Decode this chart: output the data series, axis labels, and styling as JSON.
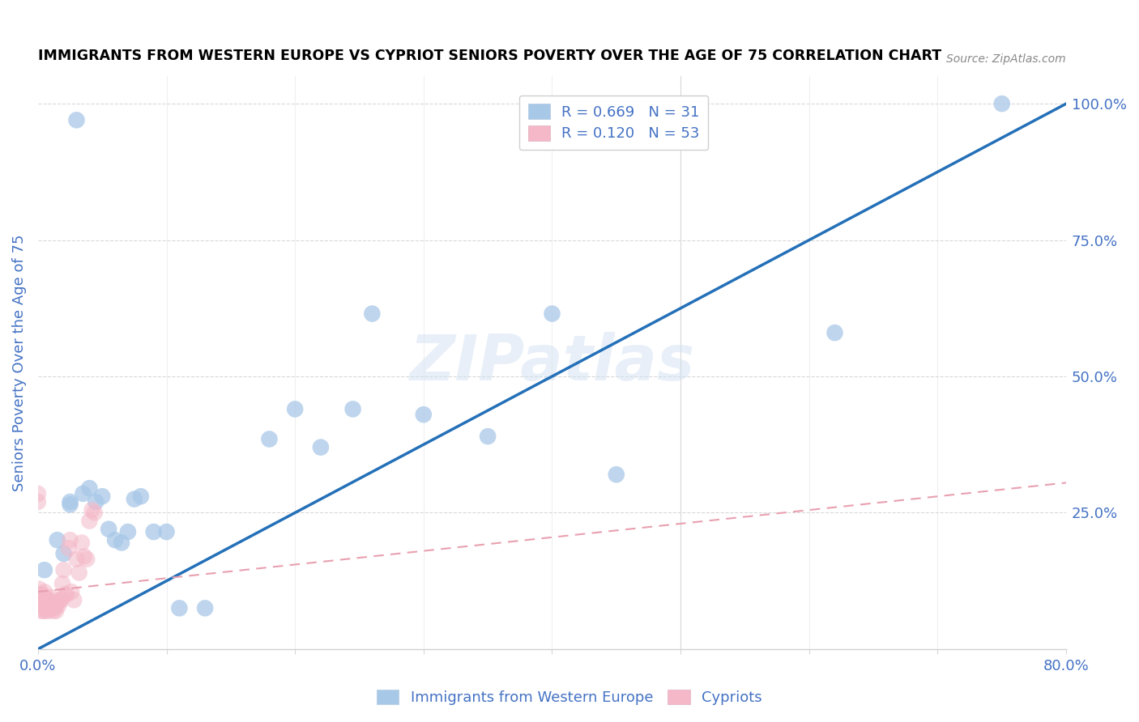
{
  "title": "IMMIGRANTS FROM WESTERN EUROPE VS CYPRIOT SENIORS POVERTY OVER THE AGE OF 75 CORRELATION CHART",
  "source": "Source: ZipAtlas.com",
  "ylabel": "Seniors Poverty Over the Age of 75",
  "xlim": [
    0.0,
    0.8
  ],
  "ylim": [
    0.0,
    1.05
  ],
  "xticks": [
    0.0,
    0.1,
    0.2,
    0.3,
    0.4,
    0.5,
    0.6,
    0.7,
    0.8
  ],
  "xticklabels": [
    "0.0%",
    "",
    "",
    "",
    "",
    "",
    "",
    "",
    "80.0%"
  ],
  "yticks_right": [
    0.0,
    0.25,
    0.5,
    0.75,
    1.0
  ],
  "yticklabels_right": [
    "",
    "25.0%",
    "50.0%",
    "75.0%",
    "100.0%"
  ],
  "legend_r1": "R = 0.669",
  "legend_n1": "N = 31",
  "legend_r2": "R = 0.120",
  "legend_n2": "N = 53",
  "blue_color": "#a8c8e8",
  "pink_color": "#f4b8c8",
  "line_blue": "#2470b8",
  "line_pink": "#e8a0b0",
  "text_color": "#4472c4",
  "watermark_text": "ZIPatlas",
  "blue_line_x": [
    0.0,
    0.8
  ],
  "blue_line_y": [
    0.0,
    1.0
  ],
  "pink_line_x": [
    0.0,
    0.8
  ],
  "pink_line_y": [
    0.105,
    0.305
  ],
  "blue_scatter_x": [
    0.025,
    0.025,
    0.035,
    0.04,
    0.045,
    0.05,
    0.055,
    0.06,
    0.065,
    0.07,
    0.075,
    0.08,
    0.09,
    0.1,
    0.11,
    0.13,
    0.18,
    0.2,
    0.22,
    0.245,
    0.26,
    0.3,
    0.35,
    0.4,
    0.45,
    0.62,
    0.75,
    0.005,
    0.015,
    0.02,
    0.03
  ],
  "blue_scatter_y": [
    0.27,
    0.265,
    0.285,
    0.295,
    0.27,
    0.28,
    0.22,
    0.2,
    0.195,
    0.215,
    0.275,
    0.28,
    0.215,
    0.215,
    0.075,
    0.075,
    0.385,
    0.44,
    0.37,
    0.44,
    0.615,
    0.43,
    0.39,
    0.615,
    0.32,
    0.58,
    1.0,
    0.145,
    0.2,
    0.175,
    0.97
  ],
  "pink_scatter_x": [
    0.0,
    0.0,
    0.001,
    0.001,
    0.002,
    0.002,
    0.002,
    0.003,
    0.003,
    0.003,
    0.003,
    0.004,
    0.004,
    0.004,
    0.005,
    0.005,
    0.005,
    0.006,
    0.006,
    0.006,
    0.007,
    0.007,
    0.007,
    0.008,
    0.008,
    0.009,
    0.009,
    0.01,
    0.01,
    0.011,
    0.012,
    0.013,
    0.014,
    0.015,
    0.016,
    0.017,
    0.018,
    0.019,
    0.02,
    0.021,
    0.022,
    0.024,
    0.025,
    0.026,
    0.028,
    0.03,
    0.032,
    0.034,
    0.036,
    0.038,
    0.04,
    0.042,
    0.044
  ],
  "pink_scatter_y": [
    0.27,
    0.285,
    0.09,
    0.11,
    0.095,
    0.085,
    0.1,
    0.07,
    0.08,
    0.1,
    0.09,
    0.07,
    0.085,
    0.095,
    0.08,
    0.095,
    0.105,
    0.075,
    0.085,
    0.07,
    0.075,
    0.09,
    0.08,
    0.07,
    0.085,
    0.075,
    0.09,
    0.08,
    0.095,
    0.085,
    0.07,
    0.075,
    0.07,
    0.085,
    0.08,
    0.09,
    0.09,
    0.12,
    0.145,
    0.1,
    0.1,
    0.185,
    0.2,
    0.105,
    0.09,
    0.165,
    0.14,
    0.195,
    0.17,
    0.165,
    0.235,
    0.255,
    0.25
  ]
}
